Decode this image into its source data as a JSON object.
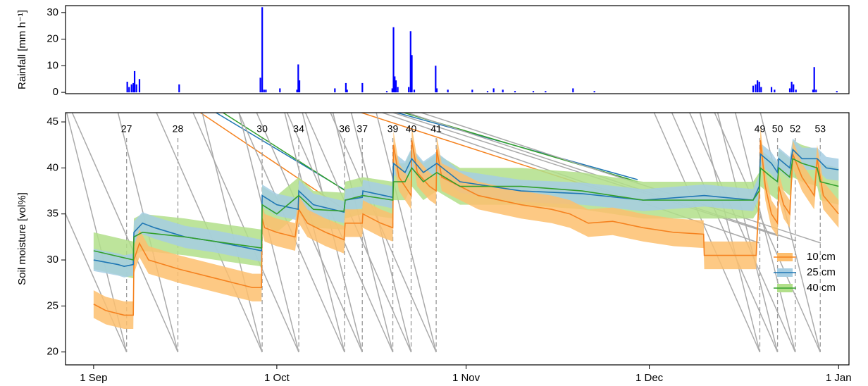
{
  "chart_data": [
    {
      "type": "bar",
      "y_label": "Rainfall [mm h⁻¹]",
      "color": "#0000ff",
      "xlim": [
        -4.6,
        123.7
      ],
      "ylim": [
        -0.5,
        32.6
      ],
      "yticks": [
        0,
        10,
        20,
        30
      ],
      "x": [
        5.5,
        5.8,
        6.2,
        6.5,
        6.7,
        7.0,
        7.5,
        14.0,
        27.3,
        27.6,
        27.9,
        28.2,
        30.5,
        33.3,
        33.5,
        33.7,
        39.5,
        41.3,
        41.5,
        44.0,
        48.0,
        48.9,
        49.1,
        49.3,
        49.5,
        49.8,
        51.6,
        51.9,
        52.1,
        52.5,
        56.0,
        56.2,
        58.0,
        62.0,
        64.5,
        65.5,
        67.0,
        69.0,
        72.0,
        74.0,
        78.5,
        82.0,
        108.0,
        108.4,
        108.7,
        109.0,
        109.3,
        111.0,
        111.5,
        114.0,
        114.3,
        114.6,
        115.0,
        117.8,
        118.0,
        118.3,
        121.7
      ],
      "values": [
        4,
        2,
        3,
        3.5,
        8,
        3,
        5,
        3,
        5.5,
        32,
        1,
        1,
        1.5,
        1,
        10.5,
        4.5,
        1.5,
        3.5,
        1,
        3.5,
        0.5,
        1.5,
        24.5,
        6,
        4.5,
        2,
        2,
        23,
        14,
        1,
        10,
        1.5,
        1,
        1,
        0.5,
        1.5,
        1,
        0.5,
        0.5,
        0.5,
        1.5,
        0.5,
        2.5,
        3,
        4.5,
        4,
        2,
        2,
        1,
        1.5,
        4,
        3,
        1,
        1,
        9.5,
        1,
        0.5
      ]
    },
    {
      "type": "line",
      "y_label": "Soil moisture [vol%]",
      "xlim": [
        -4.6,
        123.7
      ],
      "ylim": [
        18.6,
        46
      ],
      "yticks": [
        20,
        25,
        30,
        35,
        40,
        45
      ],
      "xticks": [
        {
          "value": 0,
          "label": "1 Sep"
        },
        {
          "value": 30,
          "label": "1 Oct"
        },
        {
          "value": 61,
          "label": "1 Nov"
        },
        {
          "value": 91,
          "label": "1 Dec"
        },
        {
          "value": 122,
          "label": "1 Jan"
        }
      ],
      "legend": "bottom-right",
      "events": [
        {
          "label": "27",
          "x": 5.4
        },
        {
          "label": "28",
          "x": 13.8
        },
        {
          "label": "30",
          "x": 27.6
        },
        {
          "label": "34",
          "x": 33.6
        },
        {
          "label": "36",
          "x": 41.1
        },
        {
          "label": "37",
          "x": 44.0
        },
        {
          "label": "39",
          "x": 49.0
        },
        {
          "label": "40",
          "x": 52.0
        },
        {
          "label": "41",
          "x": 56.1
        },
        {
          "label": "49",
          "x": 109.1
        },
        {
          "label": "50",
          "x": 112.0
        },
        {
          "label": "52",
          "x": 114.9
        },
        {
          "label": "53",
          "x": 119.0
        }
      ],
      "series": [
        {
          "name": "10 cm",
          "color": "#f5821f",
          "band_color": "#fdbf6f",
          "spread": 1.5,
          "x": [
            0,
            2,
            5,
            6.5,
            6.6,
            7.5,
            9,
            14,
            20,
            26,
            27.5,
            27.6,
            28,
            30,
            33,
            33.6,
            35,
            38,
            41,
            41.2,
            44,
            44.1,
            47,
            49,
            49.1,
            50,
            51.5,
            52,
            52.1,
            53,
            55,
            56.1,
            56.2,
            57,
            60,
            63,
            70,
            75,
            78,
            81,
            85,
            90,
            95,
            99.9,
            100,
            108.5,
            109,
            109.2,
            110,
            111,
            112,
            112.2,
            113,
            114,
            114.5,
            116,
            118,
            118.5,
            119.5,
            122
          ],
          "values": [
            25.2,
            24.5,
            24,
            24,
            30,
            31.8,
            30,
            29,
            28,
            27,
            27,
            34.5,
            33.5,
            33,
            32.5,
            35.5,
            34,
            33,
            32.2,
            34,
            34,
            35,
            34,
            33.5,
            42.5,
            39,
            37.5,
            37,
            43,
            39.5,
            38,
            37.5,
            42,
            39,
            38,
            37,
            36,
            35.5,
            35,
            34,
            34.2,
            33.5,
            33,
            32.8,
            30.5,
            30.5,
            37,
            43,
            38,
            35,
            34,
            38,
            36,
            35,
            41.5,
            39,
            37,
            41,
            37,
            35
          ]
        },
        {
          "name": "25 cm",
          "color": "#1f77b4",
          "band_color": "#a6cee3",
          "spread": 1.2,
          "x": [
            0,
            4,
            5,
            6.5,
            6.6,
            8,
            10,
            15,
            20,
            27.5,
            27.6,
            30,
            33.5,
            33.6,
            36,
            41,
            41.2,
            44,
            44.1,
            49,
            49.1,
            51,
            52.1,
            54,
            56.2,
            60,
            70,
            80,
            90,
            100,
            108,
            109,
            109.2,
            111,
            112,
            112.2,
            114,
            114.5,
            116,
            118.5,
            120,
            122
          ],
          "values": [
            30,
            29.5,
            29.3,
            29.5,
            33,
            34,
            33.5,
            32.5,
            32,
            31,
            37,
            36,
            35.5,
            37.5,
            36,
            35.2,
            36.5,
            36.8,
            37.5,
            36.8,
            40.5,
            39.5,
            41,
            39.5,
            40.5,
            38.5,
            37.5,
            37.2,
            36.5,
            37,
            36.5,
            38,
            41.5,
            40.5,
            39.5,
            41,
            40,
            42,
            41,
            41,
            40,
            39.8
          ]
        },
        {
          "name": "40 cm",
          "color": "#33a02c",
          "band_color": "#b2df8a",
          "spread": 2,
          "x": [
            0,
            6.5,
            6.6,
            8,
            15,
            20,
            27.5,
            27.6,
            30,
            33.6,
            36,
            41,
            41.2,
            44.1,
            49,
            49.1,
            51,
            52.1,
            54,
            56.2,
            60,
            70,
            80,
            90,
            100,
            108,
            109,
            109.2,
            111,
            112,
            112.2,
            114,
            114.5,
            116,
            118.5,
            119,
            122
          ],
          "values": [
            31,
            30,
            32.5,
            33,
            32.5,
            32,
            31.3,
            36,
            35,
            37,
            35.5,
            35.3,
            36.5,
            37,
            36.5,
            38.5,
            38.5,
            40,
            38.5,
            39.5,
            38,
            38,
            37.5,
            36.5,
            36.5,
            36.5,
            37.5,
            40,
            39,
            38.5,
            40,
            39,
            41,
            40.5,
            40,
            38.5,
            38
          ]
        }
      ]
    }
  ]
}
